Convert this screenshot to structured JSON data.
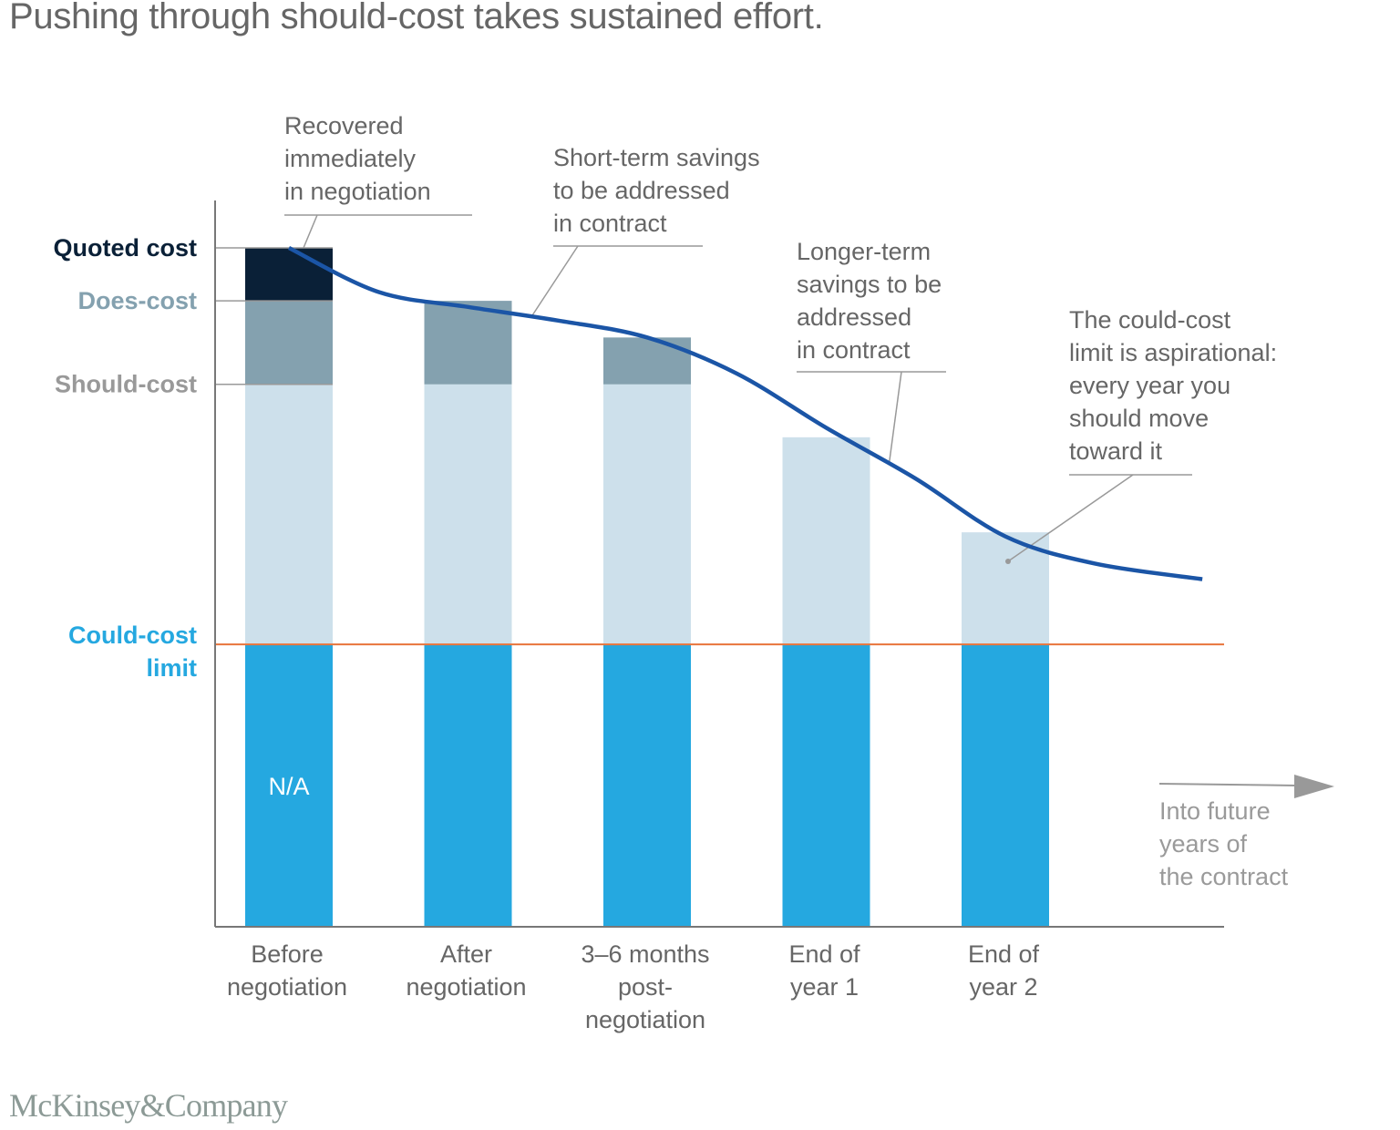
{
  "page": {
    "title": "Pushing through should-cost takes sustained effort.",
    "footer_logo": "McKinsey&Company"
  },
  "colors": {
    "quoted": "#0a2037",
    "does": "#84a1af",
    "should": "#cde0eb",
    "could": "#25a8e0",
    "curve": "#1b55a6",
    "could_line": "#e8743b",
    "axis": "#777777",
    "annotation_text": "#666666",
    "label_quoted": "#0a2037",
    "label_does": "#84a1af",
    "label_should": "#999999",
    "label_could": "#25a8e0",
    "future_text": "#9a9a9a"
  },
  "chart_data": {
    "type": "bar",
    "stacked": true,
    "title": "Pushing through should-cost takes sustained effort.",
    "xlabel": "",
    "ylabel": "",
    "ylim": [
      0,
      100
    ],
    "grid": false,
    "units": "relative cost index (quoted cost = 100)",
    "categories": [
      [
        "Before",
        "negotiation"
      ],
      [
        "After",
        "negotiation"
      ],
      [
        "3–6 months",
        "post-",
        "negotiation"
      ],
      [
        "End of",
        "year 1"
      ],
      [
        "End of",
        "year 2"
      ]
    ],
    "category_labels": [
      "Before negotiation",
      "After negotiation",
      "3–6 months post-negotiation",
      "End of year 1",
      "End of year 2"
    ],
    "series": [
      {
        "name": "Could-cost limit",
        "key": "could",
        "values": [
          41.6,
          41.6,
          41.6,
          41.6,
          41.6
        ]
      },
      {
        "name": "Should-cost",
        "key": "should",
        "values": [
          38.3,
          38.3,
          38.3,
          30.5,
          16.5
        ]
      },
      {
        "name": "Does-cost",
        "key": "does",
        "values": [
          12.3,
          12.3,
          6.9,
          0,
          0
        ]
      },
      {
        "name": "Quoted cost",
        "key": "quoted",
        "values": [
          7.8,
          0,
          0,
          0,
          0
        ]
      }
    ],
    "bar_text": [
      "N/A",
      "",
      "",
      "",
      ""
    ],
    "reference_levels": [
      {
        "name": "Quoted cost",
        "lines": [
          "Quoted cost"
        ],
        "value": 100,
        "color_key": "label_quoted",
        "tick": true
      },
      {
        "name": "Does-cost",
        "lines": [
          "Does-cost"
        ],
        "value": 92.2,
        "color_key": "label_does",
        "tick": true
      },
      {
        "name": "Should-cost",
        "lines": [
          "Should-cost"
        ],
        "value": 79.9,
        "color_key": "label_should",
        "tick": true
      },
      {
        "name": "Could-cost limit",
        "lines": [
          "Could-cost",
          "limit"
        ],
        "value": 41.6,
        "color_key": "label_could",
        "tick": false
      }
    ],
    "could_cost_line": 41.6,
    "trend_curve": {
      "name": "Cost trajectory",
      "points": [
        [
          0,
          100
        ],
        [
          0.5,
          93.5
        ],
        [
          1,
          91.3
        ],
        [
          1.5,
          89.3
        ],
        [
          2,
          86.8
        ],
        [
          2.5,
          81.5
        ],
        [
          3,
          73.5
        ],
        [
          3.5,
          66
        ],
        [
          4,
          57.5
        ],
        [
          4.5,
          53.5
        ],
        [
          5.1,
          51.2
        ]
      ]
    },
    "annotations": [
      {
        "lines": [
          "Recovered",
          "immediately",
          "in negotiation"
        ],
        "target": [
          0,
          100
        ]
      },
      {
        "lines": [
          "Short-term savings",
          "to be addressed",
          "in contract"
        ],
        "target": [
          1.35,
          89.7
        ]
      },
      {
        "lines": [
          "Longer-term",
          "savings to be",
          "addressed",
          "in contract"
        ],
        "target": [
          3.35,
          68
        ]
      },
      {
        "lines": [
          "The could-cost",
          "limit is aspirational:",
          "every year you",
          "should move",
          "toward it"
        ],
        "target": [
          4,
          53.7
        ],
        "dot": true
      }
    ],
    "future_arrow": {
      "lines": [
        "Into future",
        "years of",
        "the contract"
      ]
    }
  }
}
